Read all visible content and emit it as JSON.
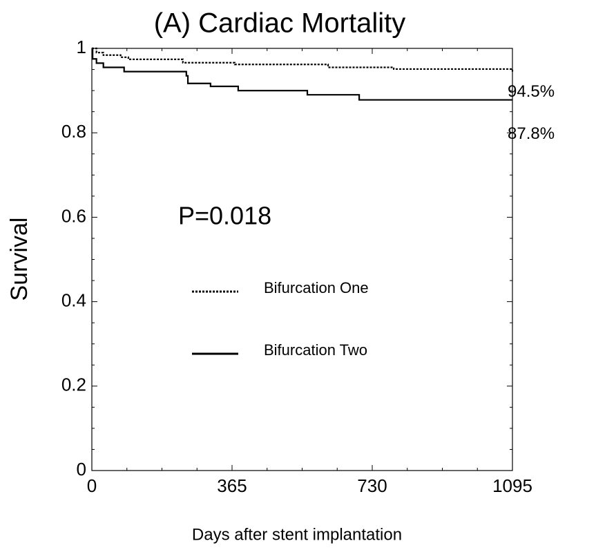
{
  "chart_data": {
    "type": "line",
    "drawstyle": "steps-post",
    "title": "(A)  Cardiac Mortality",
    "xlabel": "Days after stent implantation",
    "ylabel": "Survival",
    "annotation": "P=0.018",
    "xlim": [
      0,
      1095
    ],
    "ylim": [
      0,
      1
    ],
    "xticks": [
      0,
      365,
      730,
      1095
    ],
    "yticks": [
      0,
      0.2,
      0.4,
      0.6,
      0.8,
      1
    ],
    "series": [
      {
        "name": "Bifurcation One",
        "color": "#000000",
        "dash": "dotted",
        "end_label": "94.5%",
        "x": [
          0,
          12,
          30,
          75,
          95,
          237,
          372,
          615,
          786,
          1095
        ],
        "values": [
          1,
          0.99,
          0.984,
          0.979,
          0.974,
          0.966,
          0.962,
          0.955,
          0.951,
          0.945
        ]
      },
      {
        "name": "Bifurcation Two",
        "color": "#000000",
        "dash": "solid",
        "end_label": "87.8%",
        "x": [
          0,
          2,
          12,
          30,
          84,
          246,
          250,
          309,
          381,
          561,
          696,
          1095
        ],
        "values": [
          1,
          0.975,
          0.965,
          0.955,
          0.945,
          0.935,
          0.917,
          0.91,
          0.9,
          0.89,
          0.878,
          0.878
        ]
      }
    ]
  }
}
